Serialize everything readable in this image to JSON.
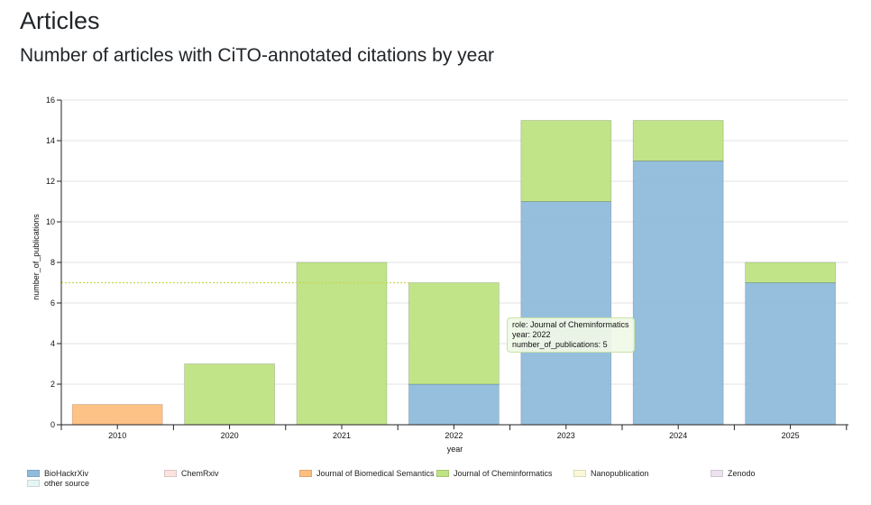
{
  "page": {
    "title": "Articles",
    "subtitle": "Number of articles with CiTO-annotated citations by year"
  },
  "chart_data": {
    "type": "bar",
    "stacked": true,
    "categories": [
      "2010",
      "2020",
      "2021",
      "2022",
      "2023",
      "2024",
      "2025"
    ],
    "xlabel": "year",
    "ylabel": "number_of_publications",
    "ylim": [
      0,
      16
    ],
    "yticks": [
      0,
      2,
      4,
      6,
      8,
      10,
      12,
      14,
      16
    ],
    "grid": true,
    "legend_position": "bottom",
    "series": [
      {
        "name": "BioHackrXiv",
        "color": "#8fbcdb",
        "values": [
          0,
          0,
          0,
          2,
          11,
          13,
          7
        ]
      },
      {
        "name": "ChemRxiv",
        "color": "#fbe3df",
        "values": [
          0,
          0,
          0,
          0,
          0,
          0,
          0
        ]
      },
      {
        "name": "Journal of Biomedical Semantics",
        "color": "#fdbf80",
        "values": [
          1,
          0,
          0,
          0,
          0,
          0,
          0
        ]
      },
      {
        "name": "Journal of Cheminformatics",
        "color": "#bee383",
        "values": [
          0,
          3,
          8,
          5,
          4,
          2,
          1
        ]
      },
      {
        "name": "Nanopublication",
        "color": "#fbf8d8",
        "values": [
          0,
          0,
          0,
          0,
          0,
          0,
          0
        ]
      },
      {
        "name": "Zenodo",
        "color": "#ede2f0",
        "values": [
          0,
          0,
          0,
          0,
          0,
          0,
          0
        ]
      },
      {
        "name": "other source",
        "color": "#e6f6f4",
        "values": [
          0,
          0,
          0,
          0,
          0,
          0,
          0
        ]
      }
    ],
    "reference_line": {
      "value": 7,
      "color": "#c8d84a"
    },
    "tooltip": {
      "role": "role: Journal of Cheminformatics",
      "year": "year: 2022",
      "count": "number_of_publications: 5"
    }
  }
}
